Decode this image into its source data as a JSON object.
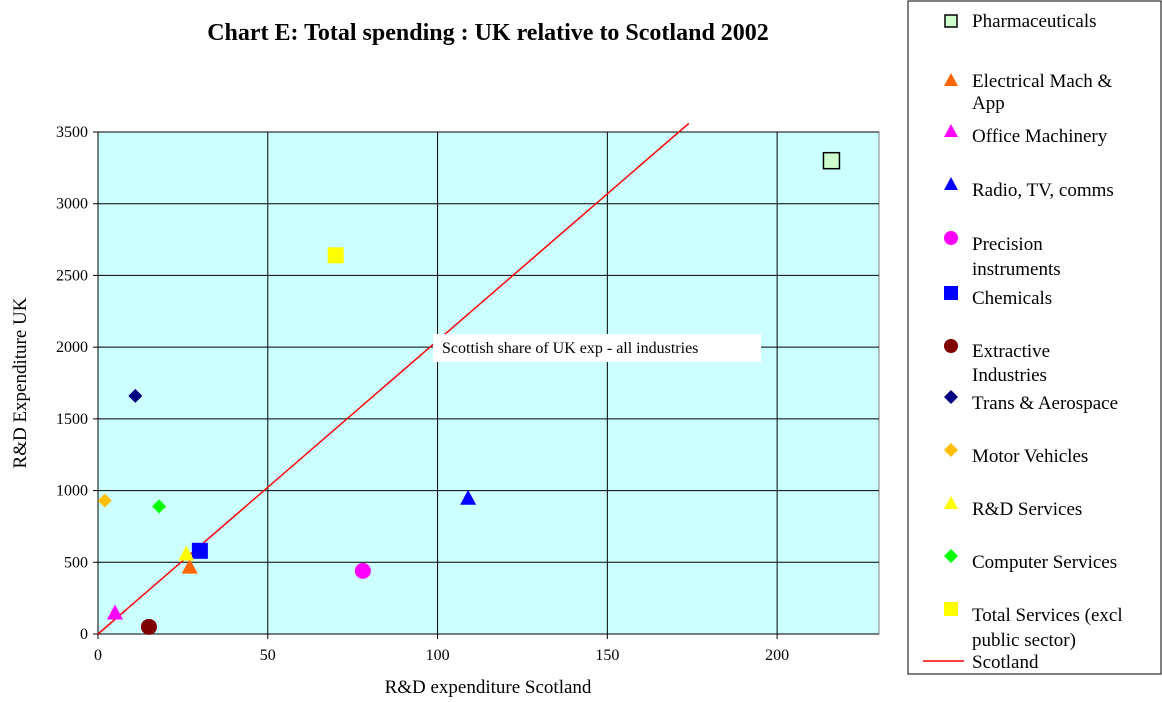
{
  "chart_data": {
    "type": "scatter",
    "title": "Chart E: Total spending : UK relative to Scotland 2002",
    "xlabel": "R&D expenditure Scotland",
    "ylabel": "R&D Expenditure UK",
    "xlim": [
      0,
      230
    ],
    "ylim": [
      0,
      3500
    ],
    "xticks": [
      0,
      50,
      100,
      150,
      200
    ],
    "yticks": [
      0,
      500,
      1000,
      1500,
      2000,
      2500,
      3000,
      3500
    ],
    "grid": true,
    "plot_background": "#ccffff",
    "legend_placement": "right",
    "series": [
      {
        "name": "Pharmaceuticals",
        "marker": "square-outline",
        "color": "#ccffcc",
        "x": 216,
        "y": 3300
      },
      {
        "name": "Electrical Mach & App",
        "marker": "triangle",
        "color": "#ff6600",
        "x": 27,
        "y": 470
      },
      {
        "name": "Office Machinery",
        "marker": "triangle",
        "color": "#ff00ff",
        "x": 5,
        "y": 150
      },
      {
        "name": "Radio, TV, comms",
        "marker": "triangle",
        "color": "#0000ff",
        "x": 109,
        "y": 950
      },
      {
        "name": "Precision instruments",
        "marker": "circle",
        "color": "#ff00ff",
        "x": 78,
        "y": 440
      },
      {
        "name": "Chemicals",
        "marker": "square",
        "color": "#0000ff",
        "x": 30,
        "y": 580
      },
      {
        "name": "Extractive Industries",
        "marker": "circle",
        "color": "#800000",
        "x": 15,
        "y": 50
      },
      {
        "name": "Trans & Aerospace",
        "marker": "diamond",
        "color": "#000080",
        "x": 11,
        "y": 1660
      },
      {
        "name": "Motor Vehicles",
        "marker": "diamond",
        "color": "#ffbf00",
        "x": 2,
        "y": 930
      },
      {
        "name": "R&D Services",
        "marker": "triangle",
        "color": "#ffff00",
        "x": 26,
        "y": 560
      },
      {
        "name": "Computer Services",
        "marker": "diamond",
        "color": "#00ff00",
        "x": 18,
        "y": 890
      },
      {
        "name": "Total Services (excl public sector)",
        "marker": "square",
        "color": "#ffff00",
        "x": 70,
        "y": 2640
      }
    ],
    "line": {
      "name": "Scotland",
      "color": "#ff0000",
      "x": [
        0,
        174
      ],
      "y": [
        0,
        3560
      ]
    },
    "annotation": {
      "text": "Scottish share of UK exp - all industries",
      "x": 146,
      "y": 2000
    }
  }
}
